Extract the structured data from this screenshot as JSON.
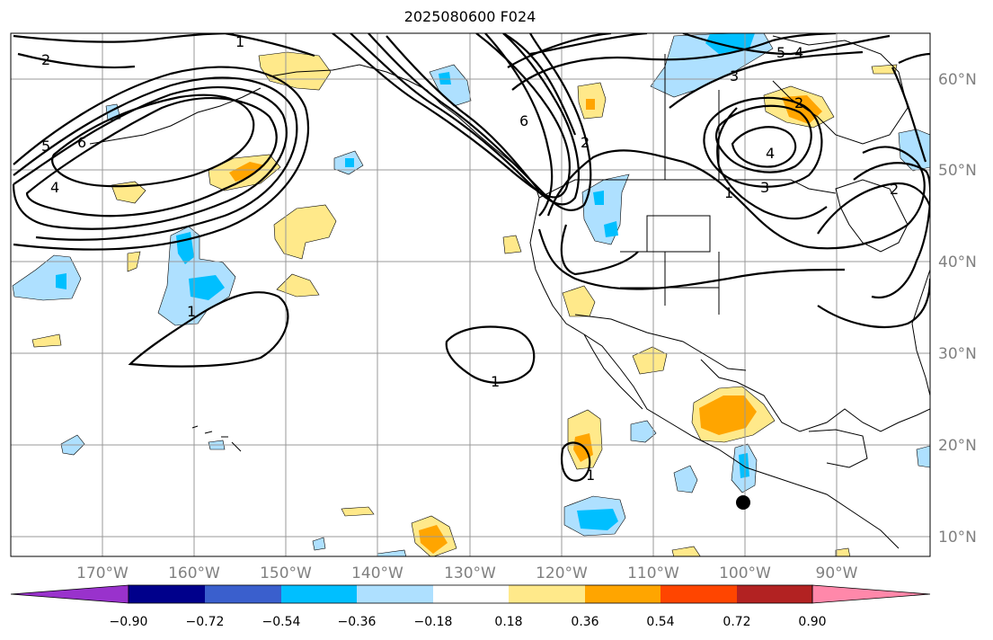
{
  "title": "2025080600 F024",
  "lat_labels": [
    "60°N",
    "50°N",
    "40°N",
    "30°N",
    "20°N",
    "10°N"
  ],
  "lon_labels": [
    "170°W",
    "160°W",
    "150°W",
    "140°W",
    "130°W",
    "120°W",
    "110°W",
    "100°W",
    "90°W"
  ],
  "colorbar": {
    "ticks": [
      "−0.90",
      "−0.72",
      "−0.54",
      "−0.36",
      "−0.18",
      "0.18",
      "0.36",
      "0.54",
      "0.72",
      "0.90"
    ],
    "colors": [
      "#9932cc",
      "#00008b",
      "#3a5fcd",
      "#00bfff",
      "#aee0ff",
      "#ffffff",
      "#ffe98a",
      "#ffa500",
      "#ff4500",
      "#b22222",
      "#ff88aa"
    ]
  },
  "contour_labels": [
    "1",
    "2",
    "3",
    "4",
    "5",
    "6"
  ],
  "fill_colors": {
    "light_yellow": "#ffe98a",
    "orange": "#ffa500",
    "light_blue": "#aee0ff",
    "blue": "#00bfff"
  },
  "marker_color": "#000000"
}
